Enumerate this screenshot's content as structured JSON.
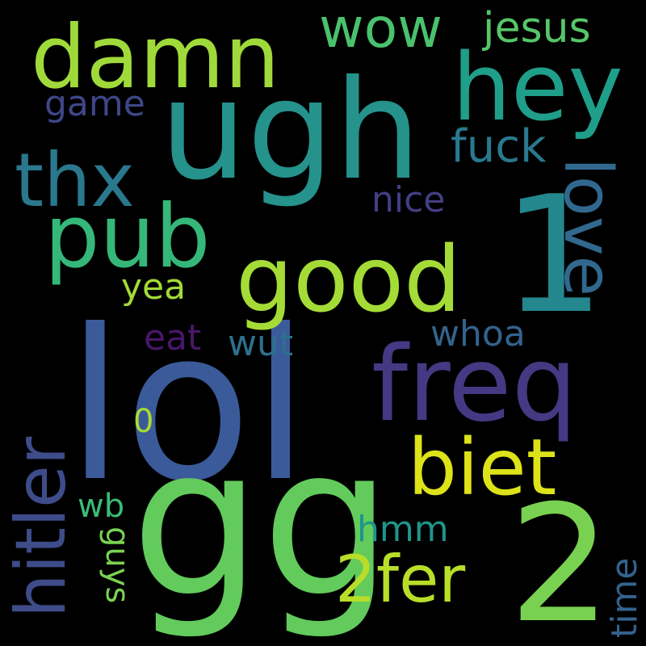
{
  "background": "#000000",
  "words": [
    {
      "id": "lol",
      "text": "lol",
      "color": "#3b5a9a"
    },
    {
      "id": "gg",
      "text": "gg",
      "color": "#62cb5c"
    },
    {
      "id": "ugh",
      "text": "ugh",
      "color": "#25928c"
    },
    {
      "id": "one",
      "text": "1",
      "color": "#24878e"
    },
    {
      "id": "two",
      "text": "2",
      "color": "#79d151"
    },
    {
      "id": "freq",
      "text": "freq",
      "color": "#443983"
    },
    {
      "id": "damn",
      "text": "damn",
      "color": "#9fda3a"
    },
    {
      "id": "hey",
      "text": "hey",
      "color": "#1f9e89"
    },
    {
      "id": "good",
      "text": "good",
      "color": "#a5db36"
    },
    {
      "id": "pub",
      "text": "pub",
      "color": "#35b779"
    },
    {
      "id": "thx",
      "text": "thx",
      "color": "#2a788e"
    },
    {
      "id": "biet",
      "text": "biet",
      "color": "#dde318"
    },
    {
      "id": "hitler",
      "text": "hitler",
      "color": "#3e4c8a"
    },
    {
      "id": "love",
      "text": "love",
      "color": "#31688e"
    },
    {
      "id": "2fer",
      "text": "2fer",
      "color": "#b8de29"
    },
    {
      "id": "wow",
      "text": "wow",
      "color": "#4ac16d"
    },
    {
      "id": "jesus",
      "text": "jesus",
      "color": "#56c667"
    },
    {
      "id": "fuck",
      "text": "fuck",
      "color": "#29798e"
    },
    {
      "id": "game",
      "text": "game",
      "color": "#3f4788"
    },
    {
      "id": "nice",
      "text": "nice",
      "color": "#433e85"
    },
    {
      "id": "yea",
      "text": "yea",
      "color": "#a2da37"
    },
    {
      "id": "eat",
      "text": "eat",
      "color": "#481769"
    },
    {
      "id": "wut",
      "text": "wut",
      "color": "#2d708e"
    },
    {
      "id": "whoa",
      "text": "whoa",
      "color": "#33638d"
    },
    {
      "id": "zero",
      "text": "0",
      "color": "#a8db34"
    },
    {
      "id": "wb",
      "text": "wb",
      "color": "#3cbb75"
    },
    {
      "id": "hmm",
      "text": "hmm",
      "color": "#1f958b"
    },
    {
      "id": "guys",
      "text": "guys",
      "color": "#7ad151"
    },
    {
      "id": "time",
      "text": "time",
      "color": "#33638d"
    }
  ]
}
